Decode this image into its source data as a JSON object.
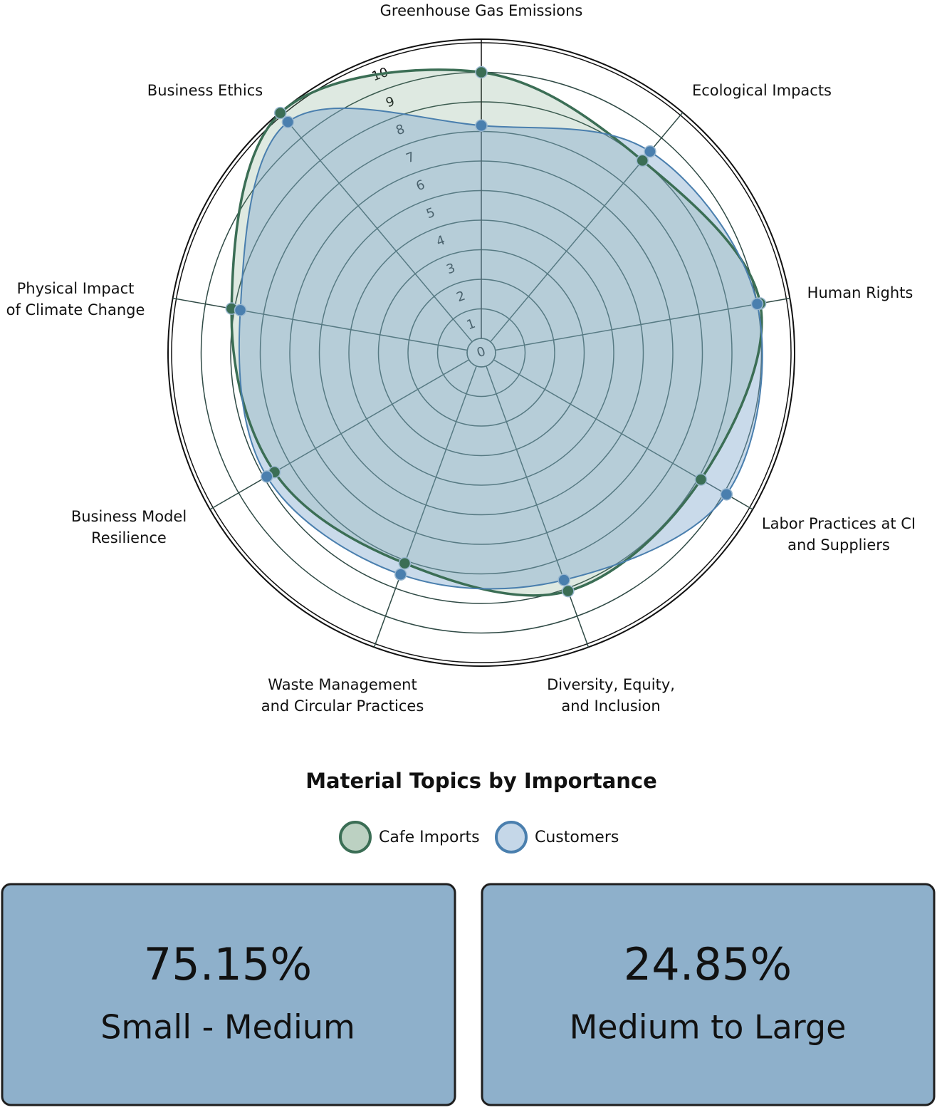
{
  "chart_data": {
    "type": "radar",
    "title": "Material Topics by Importance",
    "categories": [
      [
        "Greenhouse Gas Emissions"
      ],
      [
        "Ecological Impacts"
      ],
      [
        "Human Rights"
      ],
      [
        "Labor Practices at CI",
        "and Suppliers"
      ],
      [
        "Diversity, Equity,",
        "and Inclusion"
      ],
      [
        "Waste Management",
        "and Circular Practices"
      ],
      [
        "Business Model",
        "Resilience"
      ],
      [
        "Physical Impact",
        "of Climate Change"
      ],
      [
        "Business Ethics"
      ]
    ],
    "rlim": [
      0,
      10
    ],
    "rticks": [
      0,
      1,
      2,
      3,
      4,
      5,
      6,
      7,
      8,
      9,
      10
    ],
    "series": [
      {
        "name": "Cafe Imports",
        "color": "#3b6e55",
        "fill": "#6a9a78",
        "values": [
          9,
          8,
          9.1,
          8.1,
          8.1,
          7.1,
          7.6,
          8.1,
          10.1
        ]
      },
      {
        "name": "Customers",
        "color": "#4a7fae",
        "fill": "#7fa6cc",
        "values": [
          7.2,
          8.4,
          9,
          9.1,
          7.7,
          7.5,
          7.9,
          7.8,
          9.7
        ]
      }
    ]
  },
  "cards": [
    {
      "value": "75.15%",
      "label": "Small - Medium"
    },
    {
      "value": "24.85%",
      "label": "Medium to Large"
    }
  ]
}
